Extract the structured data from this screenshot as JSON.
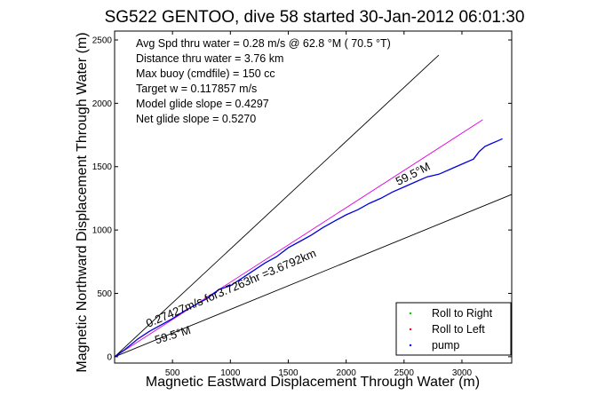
{
  "chart_data": {
    "type": "line",
    "title": "SG522 GENTOO, dive 58 started 30-Jan-2012 06:01:30",
    "xlabel": "Magnetic Eastward Displacement Through Water (m)",
    "ylabel": "Magnetic Northward Displacement Through Water (m)",
    "xlim": [
      0,
      3430
    ],
    "ylim": [
      -50,
      2570
    ],
    "xticks": [
      500,
      1000,
      1500,
      2000,
      2500,
      3000
    ],
    "yticks": [
      0,
      500,
      1000,
      1500,
      2000,
      2500
    ],
    "grid": false,
    "legend_position": "bottom-right",
    "legend": [
      {
        "label": "Roll to Right",
        "color": "#00cc00"
      },
      {
        "label": "Roll to Left",
        "color": "#ff0000"
      },
      {
        "label": "pump",
        "color": "#0000ff"
      }
    ],
    "info_lines": [
      "Avg Spd thru water =  0.28 m/s @  62.8    °M ( 70.5 °T)",
      "Distance thru water =  3.76 km",
      "Max buoy (cmdfile) = 150 cc",
      "Target w = 0.117857 m/s",
      "Model glide slope = 0.4297",
      "Net glide slope = 0.5270"
    ],
    "annotations": [
      {
        "text": "59.5°M",
        "x": 2450,
        "y": 1350,
        "angle_deg": -27
      },
      {
        "text": "0.27427m/s for3.7263hr =3.6792km",
        "x": 290,
        "y": 230,
        "angle_deg": -23
      },
      {
        "text": "59.5°M",
        "x": 360,
        "y": 100,
        "angle_deg": -17
      }
    ],
    "series": [
      {
        "style": "black-line",
        "x": [
          0,
          2800
        ],
        "y": [
          0,
          2380
        ]
      },
      {
        "style": "black-line",
        "x": [
          0,
          3430
        ],
        "y": [
          0,
          1280
        ]
      },
      {
        "style": "magenta-line",
        "x": [
          0,
          3180
        ],
        "y": [
          0,
          1870
        ]
      },
      {
        "name": "pump",
        "style": "blue-path",
        "x": [
          0,
          80,
          200,
          300,
          400,
          500,
          600,
          700,
          800,
          900,
          1000,
          1100,
          1200,
          1300,
          1400,
          1500,
          1600,
          1700,
          1800,
          1900,
          2000,
          2100,
          2200,
          2300,
          2400,
          2500,
          2600,
          2700,
          2800,
          2900,
          3000,
          3100,
          3150,
          3200,
          3250,
          3300,
          3350
        ],
        "y": [
          0,
          50,
          140,
          200,
          250,
          300,
          360,
          410,
          460,
          530,
          560,
          620,
          680,
          740,
          790,
          860,
          910,
          960,
          1020,
          1070,
          1120,
          1160,
          1210,
          1250,
          1300,
          1340,
          1380,
          1420,
          1440,
          1480,
          1520,
          1560,
          1620,
          1660,
          1680,
          1700,
          1720
        ]
      }
    ]
  }
}
